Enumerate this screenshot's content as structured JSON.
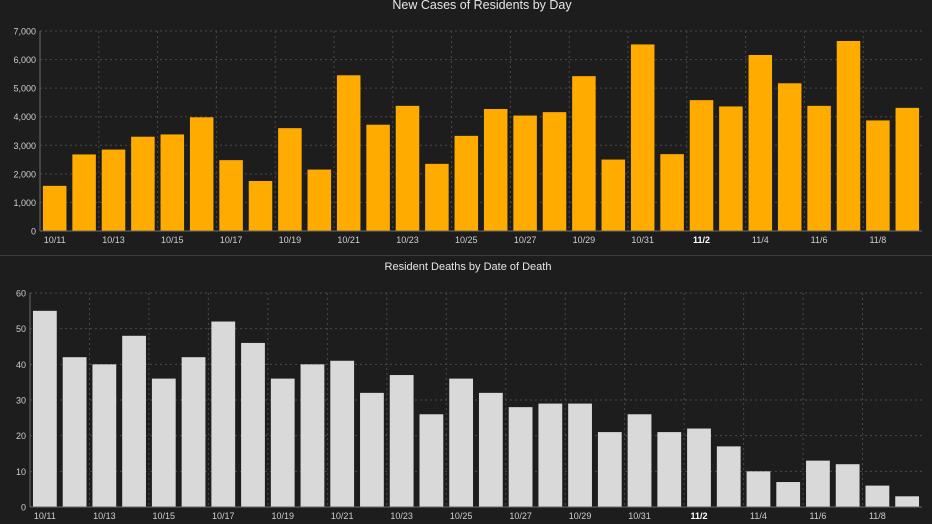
{
  "chart_data": [
    {
      "type": "bar",
      "title": "New Cases of Residents by Day",
      "categories": [
        "10/11",
        "10/12",
        "10/13",
        "10/14",
        "10/15",
        "10/16",
        "10/17",
        "10/18",
        "10/19",
        "10/20",
        "10/21",
        "10/22",
        "10/23",
        "10/24",
        "10/25",
        "10/26",
        "10/27",
        "10/28",
        "10/29",
        "10/30",
        "10/31",
        "11/1",
        "11/2",
        "11/3",
        "11/4",
        "11/5",
        "11/6",
        "11/7",
        "11/8",
        "11/9"
      ],
      "tick_labels": [
        "10/11",
        "10/13",
        "10/15",
        "10/17",
        "10/19",
        "10/21",
        "10/23",
        "10/25",
        "10/27",
        "10/29",
        "10/31",
        "11/2",
        "11/4",
        "11/6",
        "11/8"
      ],
      "bold_tick": "11/2",
      "values": [
        1580,
        2680,
        2850,
        3300,
        3380,
        3980,
        2480,
        1750,
        3600,
        2150,
        5450,
        3720,
        4380,
        2350,
        3330,
        4270,
        4040,
        4160,
        5420,
        2500,
        6530,
        2690,
        4580,
        4360,
        6160,
        5170,
        4380,
        6650,
        3870,
        4310
      ],
      "ylim": [
        0,
        7000
      ],
      "yticks": [
        0,
        1000,
        2000,
        3000,
        4000,
        5000,
        6000,
        7000
      ],
      "ytick_labels": [
        "0",
        "1,000",
        "2,000",
        "3,000",
        "4,000",
        "5,000",
        "6,000",
        "7,000"
      ],
      "color": "#ffab00",
      "grid": true,
      "xlabel": "",
      "ylabel": ""
    },
    {
      "type": "bar",
      "title": "Resident Deaths by Date of Death",
      "categories": [
        "10/11",
        "10/12",
        "10/13",
        "10/14",
        "10/15",
        "10/16",
        "10/17",
        "10/18",
        "10/19",
        "10/20",
        "10/21",
        "10/22",
        "10/23",
        "10/24",
        "10/25",
        "10/26",
        "10/27",
        "10/28",
        "10/29",
        "10/30",
        "10/31",
        "11/1",
        "11/2",
        "11/3",
        "11/4",
        "11/5",
        "11/6",
        "11/7",
        "11/8",
        "11/9"
      ],
      "tick_labels": [
        "10/11",
        "10/13",
        "10/15",
        "10/17",
        "10/19",
        "10/21",
        "10/23",
        "10/25",
        "10/27",
        "10/29",
        "10/31",
        "11/2",
        "11/4",
        "11/6",
        "11/8"
      ],
      "bold_tick": "11/2",
      "values": [
        55,
        42,
        40,
        48,
        36,
        42,
        52,
        46,
        36,
        40,
        41,
        32,
        37,
        26,
        36,
        32,
        28,
        29,
        29,
        21,
        26,
        21,
        22,
        17,
        10,
        7,
        13,
        12,
        6,
        3
      ],
      "ylim": [
        0,
        60
      ],
      "yticks": [
        0,
        10,
        20,
        30,
        40,
        50,
        60
      ],
      "ytick_labels": [
        "0",
        "10",
        "20",
        "30",
        "40",
        "50",
        "60"
      ],
      "color": "#d9d9d9",
      "grid": true,
      "xlabel": "",
      "ylabel": ""
    }
  ]
}
